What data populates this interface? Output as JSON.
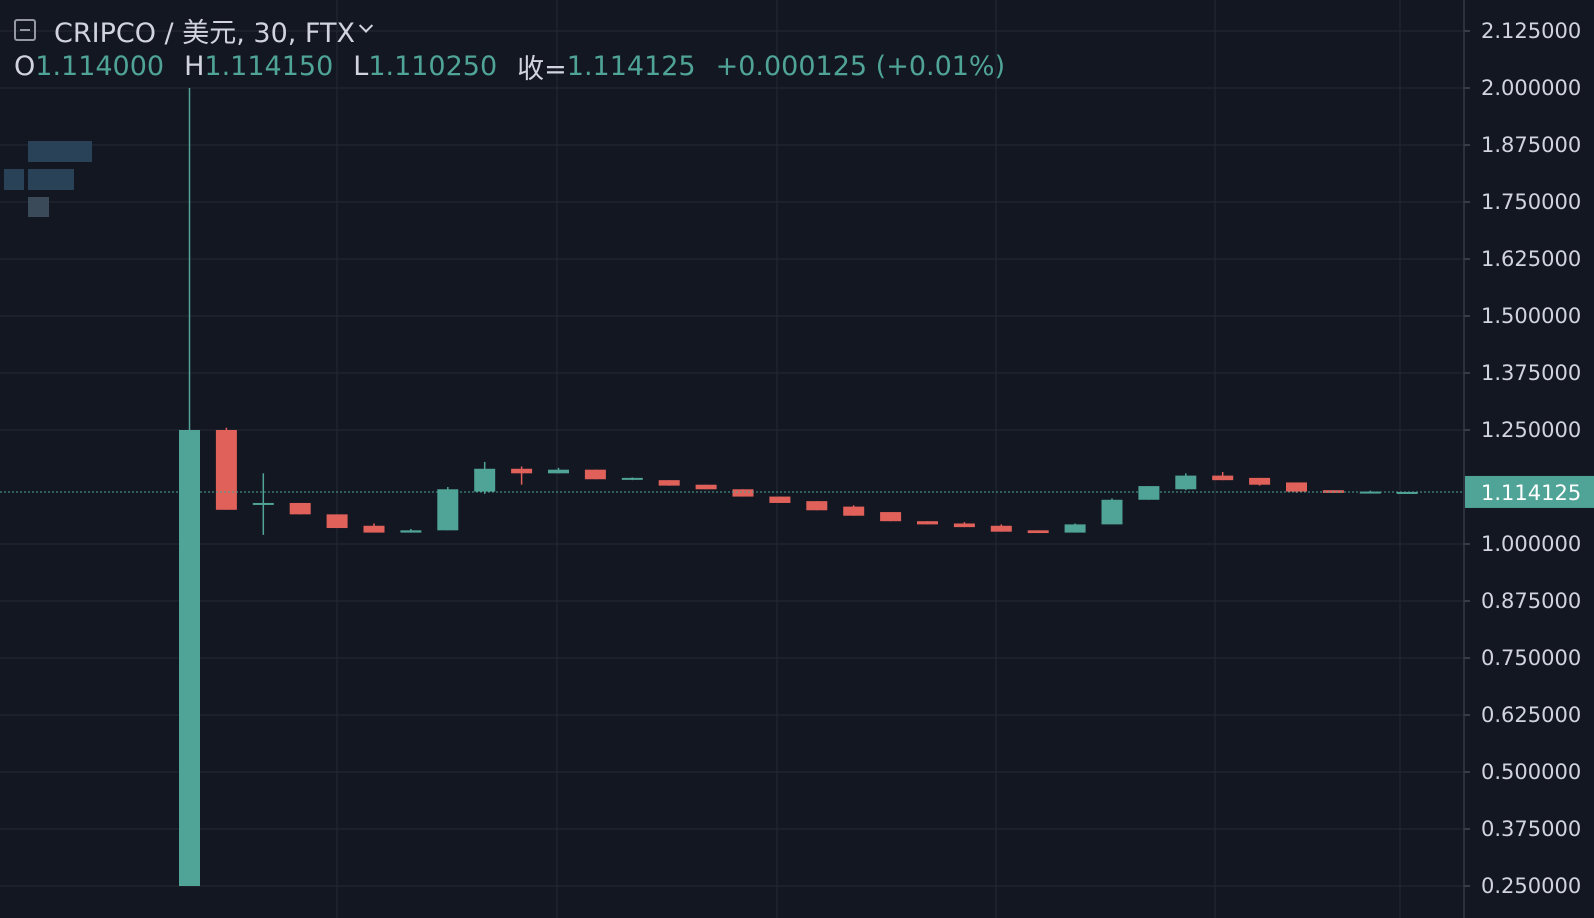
{
  "header": {
    "title": "CRIPCO / 美元, 30, FTX"
  },
  "ohlc": {
    "open_label": "O",
    "open_value": "1.114000",
    "high_label": "H",
    "high_value": "1.114150",
    "low_label": "L",
    "low_value": "1.110250",
    "close_label": "收=",
    "close_value": "1.114125",
    "change_value": "+0.000125 (+0.01%)"
  },
  "colors": {
    "background": "#131722",
    "grid": "#242834",
    "up": "#4fa397",
    "down": "#e0605a",
    "axis_text": "#d1d4dc",
    "price_tag_bg": "#4fa397"
  },
  "icons": [
    "collapse-icon",
    "chevron-down-icon"
  ],
  "chart_data": {
    "type": "candlestick",
    "y_axis": {
      "position": "right",
      "ticks": [
        "2.125000",
        "2.000000",
        "1.875000",
        "1.750000",
        "1.625000",
        "1.500000",
        "1.375000",
        "1.250000",
        "1.000000",
        "0.875000",
        "0.750000",
        "0.625000",
        "0.500000",
        "0.375000",
        "0.250000"
      ],
      "ylim": [
        0.23,
        2.145
      ]
    },
    "last_price": {
      "value": 1.114125,
      "label": "1.114125"
    },
    "grid": true,
    "candles": [
      {
        "o": 0.25,
        "h": 2.0,
        "l": 0.25,
        "c": 1.25
      },
      {
        "o": 1.25,
        "h": 1.255,
        "l": 1.075,
        "c": 1.075
      },
      {
        "o": 1.09,
        "h": 1.155,
        "l": 1.02,
        "c": 1.09
      },
      {
        "o": 1.09,
        "h": 1.09,
        "l": 1.065,
        "c": 1.065
      },
      {
        "o": 1.065,
        "h": 1.065,
        "l": 1.035,
        "c": 1.035
      },
      {
        "o": 1.04,
        "h": 1.045,
        "l": 1.025,
        "c": 1.025
      },
      {
        "o": 1.025,
        "h": 1.033,
        "l": 1.025,
        "c": 1.03
      },
      {
        "o": 1.03,
        "h": 1.125,
        "l": 1.03,
        "c": 1.12
      },
      {
        "o": 1.115,
        "h": 1.18,
        "l": 1.11,
        "c": 1.165
      },
      {
        "o": 1.165,
        "h": 1.17,
        "l": 1.13,
        "c": 1.155
      },
      {
        "o": 1.155,
        "h": 1.167,
        "l": 1.155,
        "c": 1.163
      },
      {
        "o": 1.163,
        "h": 1.163,
        "l": 1.142,
        "c": 1.142
      },
      {
        "o": 1.143,
        "h": 1.146,
        "l": 1.14,
        "c": 1.145
      },
      {
        "o": 1.14,
        "h": 1.14,
        "l": 1.128,
        "c": 1.128
      },
      {
        "o": 1.13,
        "h": 1.13,
        "l": 1.12,
        "c": 1.12
      },
      {
        "o": 1.12,
        "h": 1.12,
        "l": 1.104,
        "c": 1.104
      },
      {
        "o": 1.104,
        "h": 1.104,
        "l": 1.09,
        "c": 1.09
      },
      {
        "o": 1.094,
        "h": 1.094,
        "l": 1.074,
        "c": 1.074
      },
      {
        "o": 1.082,
        "h": 1.085,
        "l": 1.062,
        "c": 1.062
      },
      {
        "o": 1.07,
        "h": 1.07,
        "l": 1.05,
        "c": 1.05
      },
      {
        "o": 1.05,
        "h": 1.05,
        "l": 1.043,
        "c": 1.043
      },
      {
        "o": 1.045,
        "h": 1.048,
        "l": 1.037,
        "c": 1.037
      },
      {
        "o": 1.04,
        "h": 1.043,
        "l": 1.027,
        "c": 1.027
      },
      {
        "o": 1.03,
        "h": 1.03,
        "l": 1.024,
        "c": 1.024
      },
      {
        "o": 1.025,
        "h": 1.045,
        "l": 1.025,
        "c": 1.043
      },
      {
        "o": 1.043,
        "h": 1.1,
        "l": 1.043,
        "c": 1.097
      },
      {
        "o": 1.097,
        "h": 1.127,
        "l": 1.097,
        "c": 1.127
      },
      {
        "o": 1.12,
        "h": 1.155,
        "l": 1.118,
        "c": 1.15
      },
      {
        "o": 1.15,
        "h": 1.158,
        "l": 1.14,
        "c": 1.14
      },
      {
        "o": 1.145,
        "h": 1.145,
        "l": 1.128,
        "c": 1.13
      },
      {
        "o": 1.135,
        "h": 1.135,
        "l": 1.112,
        "c": 1.115
      },
      {
        "o": 1.118,
        "h": 1.118,
        "l": 1.112,
        "c": 1.112
      },
      {
        "o": 1.113,
        "h": 1.117,
        "l": 1.112,
        "c": 1.115
      },
      {
        "o": 1.114,
        "h": 1.11415,
        "l": 1.11025,
        "c": 1.114125
      }
    ]
  }
}
